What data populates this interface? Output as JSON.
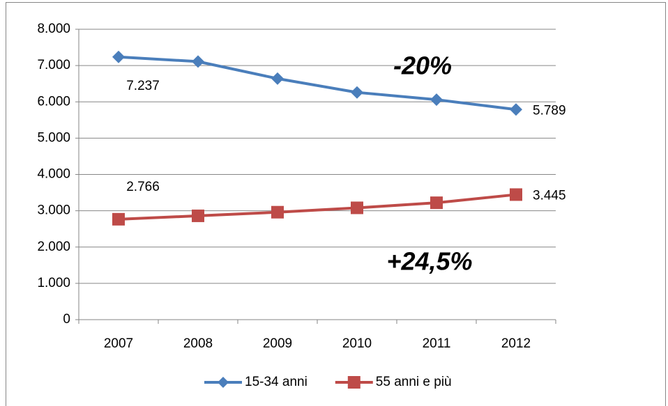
{
  "chart_data": {
    "type": "line",
    "categories": [
      "2007",
      "2008",
      "2009",
      "2010",
      "2011",
      "2012"
    ],
    "series": [
      {
        "name": "15-34 anni",
        "color": "#4a7ebb",
        "marker": "diamond",
        "values": [
          7237,
          7110,
          6640,
          6260,
          6060,
          5789
        ],
        "value_labels": [
          "7.237",
          null,
          null,
          null,
          null,
          "5.789"
        ]
      },
      {
        "name": "55 anni e più",
        "color": "#be4b48",
        "marker": "square",
        "values": [
          2766,
          2860,
          2960,
          3080,
          3220,
          3445
        ],
        "value_labels": [
          "2.766",
          null,
          null,
          null,
          null,
          "3.445"
        ]
      }
    ],
    "ylim": [
      0,
      8000
    ],
    "yticks": [
      0,
      {
        "value": 1000,
        "label": "1.000"
      },
      {
        "value": 2000,
        "label": "2.000"
      },
      {
        "value": 3000,
        "label": "3.000"
      },
      {
        "value": 4000,
        "label": "4.000"
      },
      {
        "value": 5000,
        "label": "5.000"
      },
      {
        "value": 6000,
        "label": "6.000"
      },
      {
        "value": 7000,
        "label": "7.000"
      },
      {
        "value": 8000,
        "label": "8.000"
      }
    ],
    "grid": true,
    "legend": "bottom",
    "annotations": [
      "-20%",
      "+24,5%"
    ]
  }
}
